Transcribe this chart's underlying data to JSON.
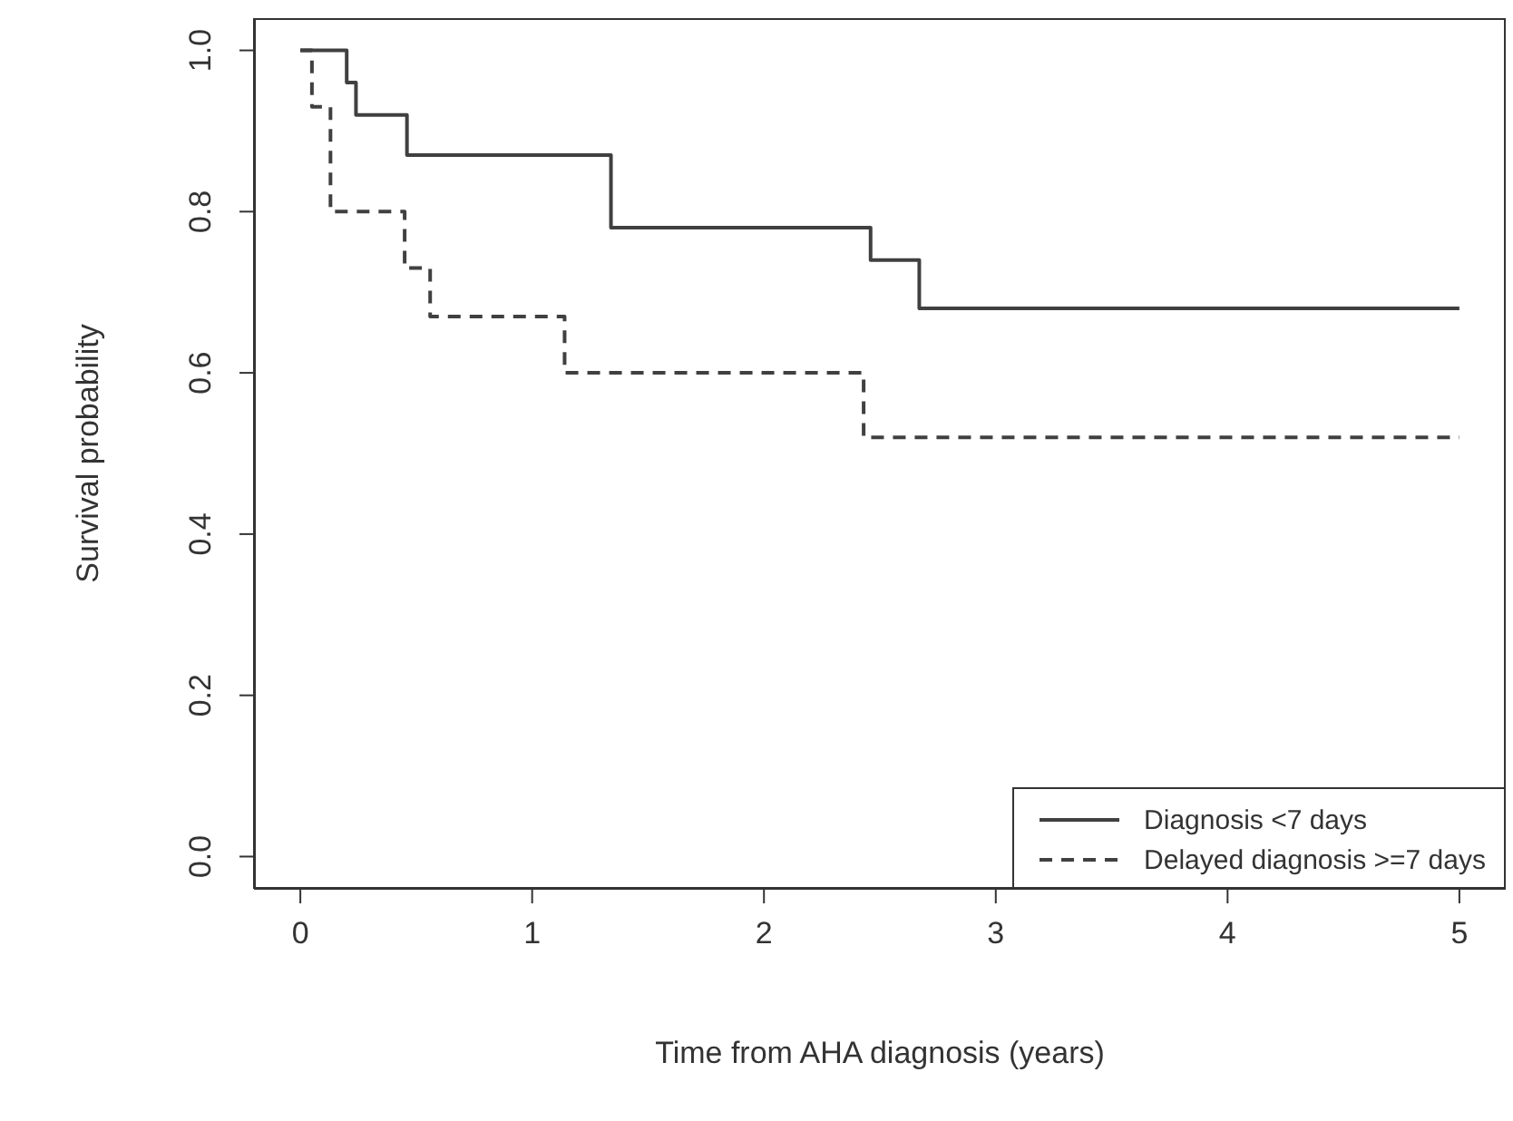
{
  "chart_data": {
    "type": "step",
    "xlabel": "Time from AHA diagnosis (years)",
    "ylabel": "Survival probability",
    "xlim": [
      -0.2,
      5.2
    ],
    "ylim": [
      -0.04,
      1.04
    ],
    "xticks": [
      0,
      1,
      2,
      3,
      4,
      5
    ],
    "yticks": [
      {
        "value": 0,
        "label": "0.0"
      },
      {
        "value": 0.2,
        "label": "0.2"
      },
      {
        "value": 0.4,
        "label": "0.4"
      },
      {
        "value": 0.6,
        "label": "0.6"
      },
      {
        "value": 0.8,
        "label": "0.8"
      },
      {
        "value": 1,
        "label": "1.0"
      }
    ],
    "grid": false,
    "legend": "bottom right",
    "series": [
      {
        "name": "Diagnosis <7 days",
        "color": "#404040",
        "line_style": "solid",
        "x": [
          0,
          0.2,
          0.24,
          0.46,
          1.34,
          2.46,
          2.67,
          5.0
        ],
        "values": [
          1,
          0.96,
          0.92,
          0.87,
          0.78,
          0.74,
          0.68,
          0.68
        ]
      },
      {
        "name": "Delayed diagnosis >=7 days",
        "color": "#404040",
        "line_style": "dashed",
        "x": [
          0,
          0.05,
          0.13,
          0.45,
          0.56,
          1.14,
          2.43,
          5.0
        ],
        "values": [
          1,
          0.93,
          0.8,
          0.73,
          0.67,
          0.6,
          0.52,
          0.52
        ]
      }
    ]
  }
}
